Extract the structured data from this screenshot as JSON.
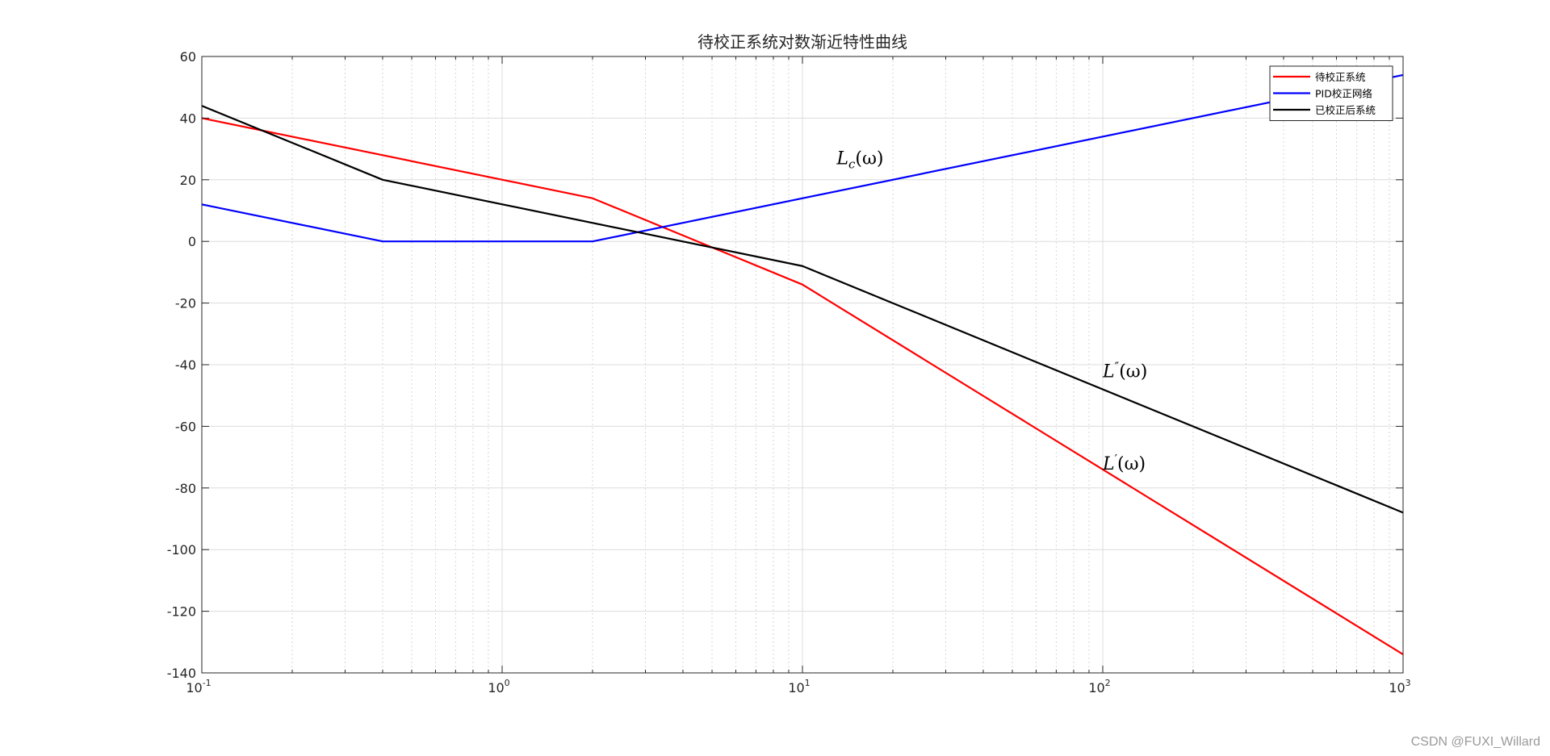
{
  "watermark": "CSDN @FUXI_Willard",
  "chart_data": {
    "type": "line",
    "title": "待校正系统对数渐近特性曲线",
    "xlabel": "",
    "ylabel": "",
    "xscale": "log",
    "xlim": [
      0.1,
      1000
    ],
    "ylim": [
      -140,
      60
    ],
    "grid": true,
    "legend_position": "top-right",
    "x_ticks": [
      {
        "value": 0.1,
        "base": "10",
        "exp": "-1"
      },
      {
        "value": 1,
        "base": "10",
        "exp": "0"
      },
      {
        "value": 10,
        "base": "10",
        "exp": "1"
      },
      {
        "value": 100,
        "base": "10",
        "exp": "2"
      },
      {
        "value": 1000,
        "base": "10",
        "exp": "3"
      }
    ],
    "y_ticks": [
      60,
      40,
      20,
      0,
      -20,
      -40,
      -60,
      -80,
      -100,
      -120,
      -140
    ],
    "series": [
      {
        "name": "待校正系统",
        "color": "#ff0000",
        "points": [
          [
            0.1,
            40
          ],
          [
            2,
            14
          ],
          [
            10,
            -14
          ],
          [
            1000,
            -134
          ]
        ]
      },
      {
        "name": "PID校正网络",
        "color": "#0000ff",
        "points": [
          [
            0.1,
            12
          ],
          [
            0.4,
            0
          ],
          [
            2,
            0
          ],
          [
            1000,
            54
          ]
        ]
      },
      {
        "name": "已校正后系统",
        "color": "#000000",
        "points": [
          [
            0.1,
            44
          ],
          [
            0.4,
            20
          ],
          [
            10,
            -8
          ],
          [
            1000,
            -88
          ]
        ]
      }
    ],
    "annotations": [
      {
        "id": "lc",
        "letter": "L",
        "sub": "c",
        "sup": "",
        "tail": "(ω)",
        "x": 13,
        "y": 25
      },
      {
        "id": "ldd",
        "letter": "L",
        "sub": "",
        "sup": "″",
        "tail": "(ω)",
        "x": 100,
        "y": -44
      },
      {
        "id": "ld",
        "letter": "L",
        "sub": "",
        "sup": "′",
        "tail": "(ω)",
        "x": 100,
        "y": -74
      }
    ]
  }
}
